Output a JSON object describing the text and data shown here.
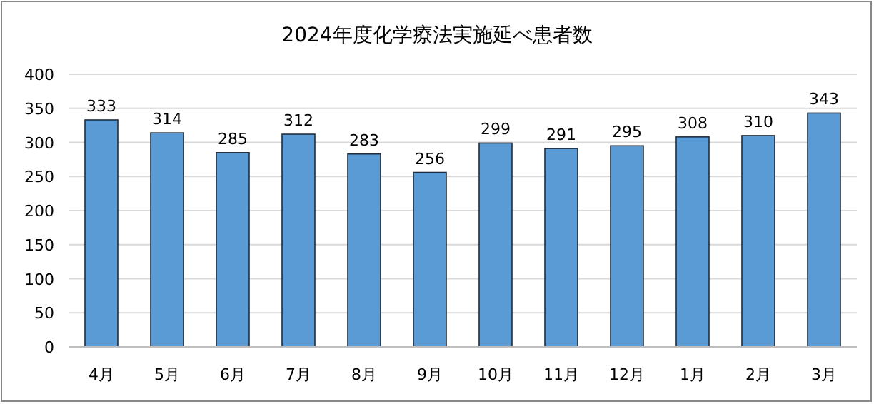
{
  "chart_data": {
    "type": "bar",
    "title": "2024年度化学療法実施延べ患者数",
    "categories": [
      "4月",
      "5月",
      "6月",
      "7月",
      "8月",
      "9月",
      "10月",
      "11月",
      "12月",
      "1月",
      "2月",
      "3月"
    ],
    "values": [
      333,
      314,
      285,
      312,
      283,
      256,
      299,
      291,
      295,
      308,
      310,
      343
    ],
    "color": "#5b9bd5",
    "ylim": [
      0,
      400
    ],
    "yticks": [
      0,
      50,
      100,
      150,
      200,
      250,
      300,
      350,
      400
    ],
    "grid": "y",
    "data_labels": true
  }
}
